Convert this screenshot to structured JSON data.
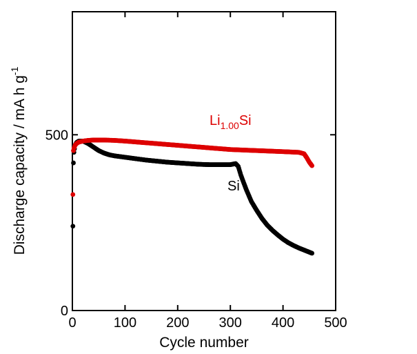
{
  "chart_data": {
    "type": "scatter",
    "title": "",
    "xlabel": "Cycle number",
    "ylabel": {
      "main": "Discharge capacity / mA h g",
      "superscript": "-1"
    },
    "xlim": [
      0,
      500
    ],
    "ylim": [
      0,
      850
    ],
    "xticks": [
      "0",
      "100",
      "200",
      "300",
      "400",
      "500"
    ],
    "yticks": [
      "0",
      "500"
    ],
    "grid": false,
    "series": [
      {
        "name": "Si",
        "label": "Si",
        "color": "#000000",
        "x": [
          1,
          2,
          3,
          5,
          8,
          12,
          20,
          30,
          40,
          50,
          60,
          70,
          80,
          90,
          100,
          120,
          140,
          160,
          180,
          200,
          220,
          240,
          260,
          280,
          300,
          310,
          315,
          320,
          330,
          340,
          350,
          360,
          370,
          380,
          390,
          400,
          410,
          420,
          430,
          440,
          450,
          455
        ],
        "y": [
          240,
          420,
          450,
          470,
          478,
          482,
          482,
          475,
          465,
          455,
          448,
          443,
          440,
          438,
          436,
          432,
          428,
          425,
          422,
          420,
          418,
          416,
          415,
          415,
          415,
          418,
          410,
          385,
          345,
          310,
          285,
          262,
          243,
          228,
          215,
          203,
          193,
          185,
          178,
          172,
          166,
          163
        ]
      },
      {
        "name": "Li1.00Si",
        "label": {
          "base": "Li",
          "subscript": "1.00",
          "suffix": "Si"
        },
        "color": "#dd0000",
        "x": [
          1,
          2,
          3,
          5,
          8,
          12,
          20,
          30,
          40,
          50,
          60,
          80,
          100,
          150,
          200,
          250,
          300,
          350,
          400,
          430,
          440,
          445,
          450,
          455
        ],
        "y": [
          330,
          455,
          462,
          470,
          475,
          479,
          482,
          484,
          485,
          485,
          485,
          484,
          482,
          476,
          470,
          464,
          458,
          455,
          452,
          450,
          446,
          435,
          422,
          412
        ]
      }
    ]
  }
}
